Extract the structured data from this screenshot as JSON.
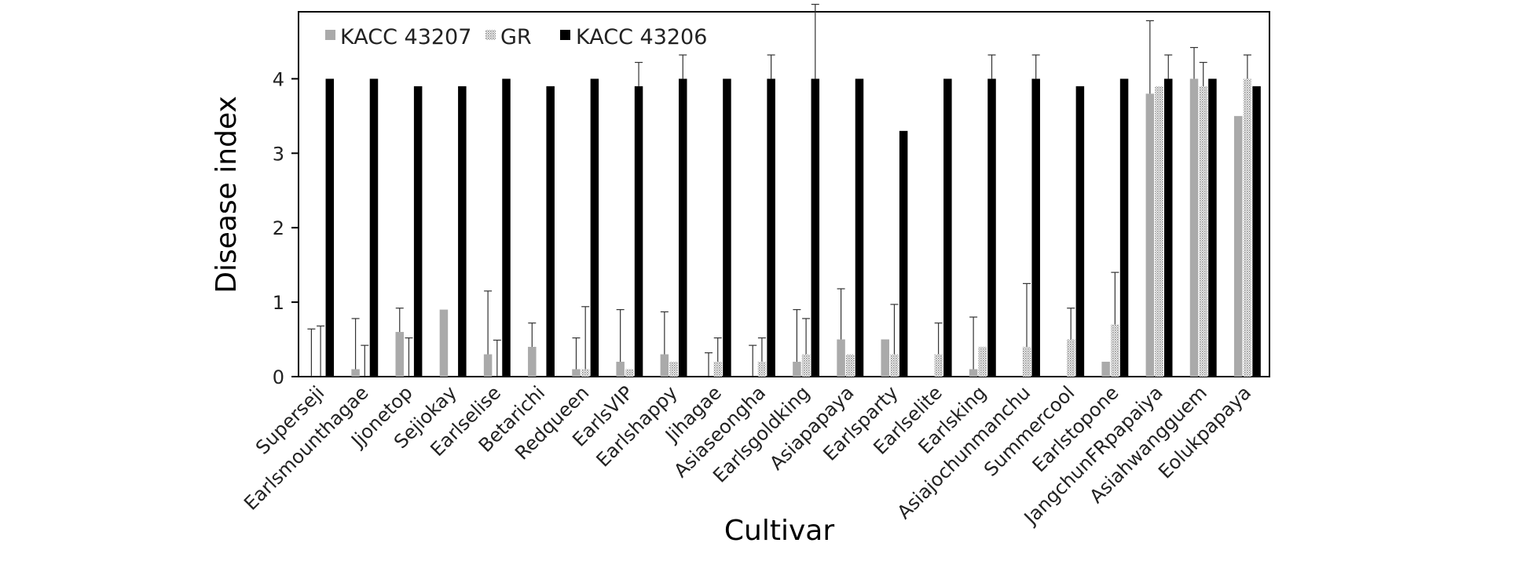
{
  "chart_data": {
    "type": "bar",
    "title": "",
    "xlabel": "Cultivar",
    "ylabel": "Disease index",
    "ylim": [
      0,
      4.9
    ],
    "yticks": [
      0,
      1,
      2,
      3,
      4
    ],
    "legend_position": "top-left",
    "categories": [
      "Superseji",
      "Earlsmounthagae",
      "Jjonetop",
      "Sejiokay",
      "Earlselise",
      "Betarichi",
      "Redqueen",
      "EarlsVIP",
      "Earlshappy",
      "Jihagae",
      "Asiaseongha",
      "Earlsgoldking",
      "Asiapapaya",
      "Earlsparty",
      "Earlselite",
      "Earlsking",
      "Asiajochunmanchu",
      "Summercool",
      "Earlstopone",
      "JangchunFRpapaiya",
      "Asiahwangguem",
      "Eolukpapaya"
    ],
    "series": [
      {
        "name": "KACC 43207",
        "color": "#aaaaaa",
        "pattern": "solid",
        "values": [
          0,
          0.1,
          0.6,
          0.9,
          0.3,
          0.4,
          0.1,
          0.2,
          0.3,
          0,
          0,
          0.2,
          0.5,
          0.5,
          0,
          0.1,
          0,
          0,
          0.2,
          3.8,
          4.0,
          3.5
        ],
        "errors": [
          0.64,
          0.68,
          0.32,
          0,
          0.85,
          0.32,
          0.42,
          0.7,
          0.57,
          0.32,
          0.42,
          0.7,
          0.68,
          0,
          0,
          0.7,
          0,
          0,
          0,
          0.98,
          0.42,
          0
        ]
      },
      {
        "name": "GR",
        "color": "#d0d0d0",
        "pattern": "dotted",
        "values": [
          0,
          0,
          0,
          0,
          0,
          0,
          0.1,
          0.1,
          0.2,
          0.2,
          0.2,
          0.3,
          0.3,
          0.3,
          0.3,
          0.4,
          0.4,
          0.5,
          0.7,
          3.9,
          3.9,
          4.0
        ],
        "errors": [
          0.68,
          0.42,
          0.52,
          0,
          0.49,
          0,
          0.84,
          0,
          0,
          0.32,
          0.32,
          0.48,
          0,
          0.67,
          0.42,
          0,
          0.85,
          0.42,
          0.7,
          0,
          0.32,
          0.32
        ]
      },
      {
        "name": "KACC 43206",
        "color": "#000000",
        "pattern": "solid",
        "values": [
          4.0,
          4.0,
          3.9,
          3.9,
          4.0,
          3.9,
          4.0,
          3.9,
          4.0,
          4.0,
          4.0,
          4.0,
          4.0,
          3.3,
          4.0,
          4.0,
          4.0,
          3.9,
          4.0,
          4.0,
          4.0,
          3.9
        ],
        "errors": [
          0,
          0,
          0,
          0,
          0,
          0,
          0,
          0.32,
          0.32,
          0,
          0.32,
          1.0,
          0,
          0,
          0,
          0.32,
          0.32,
          0,
          0,
          0.32,
          0,
          0
        ]
      }
    ]
  }
}
